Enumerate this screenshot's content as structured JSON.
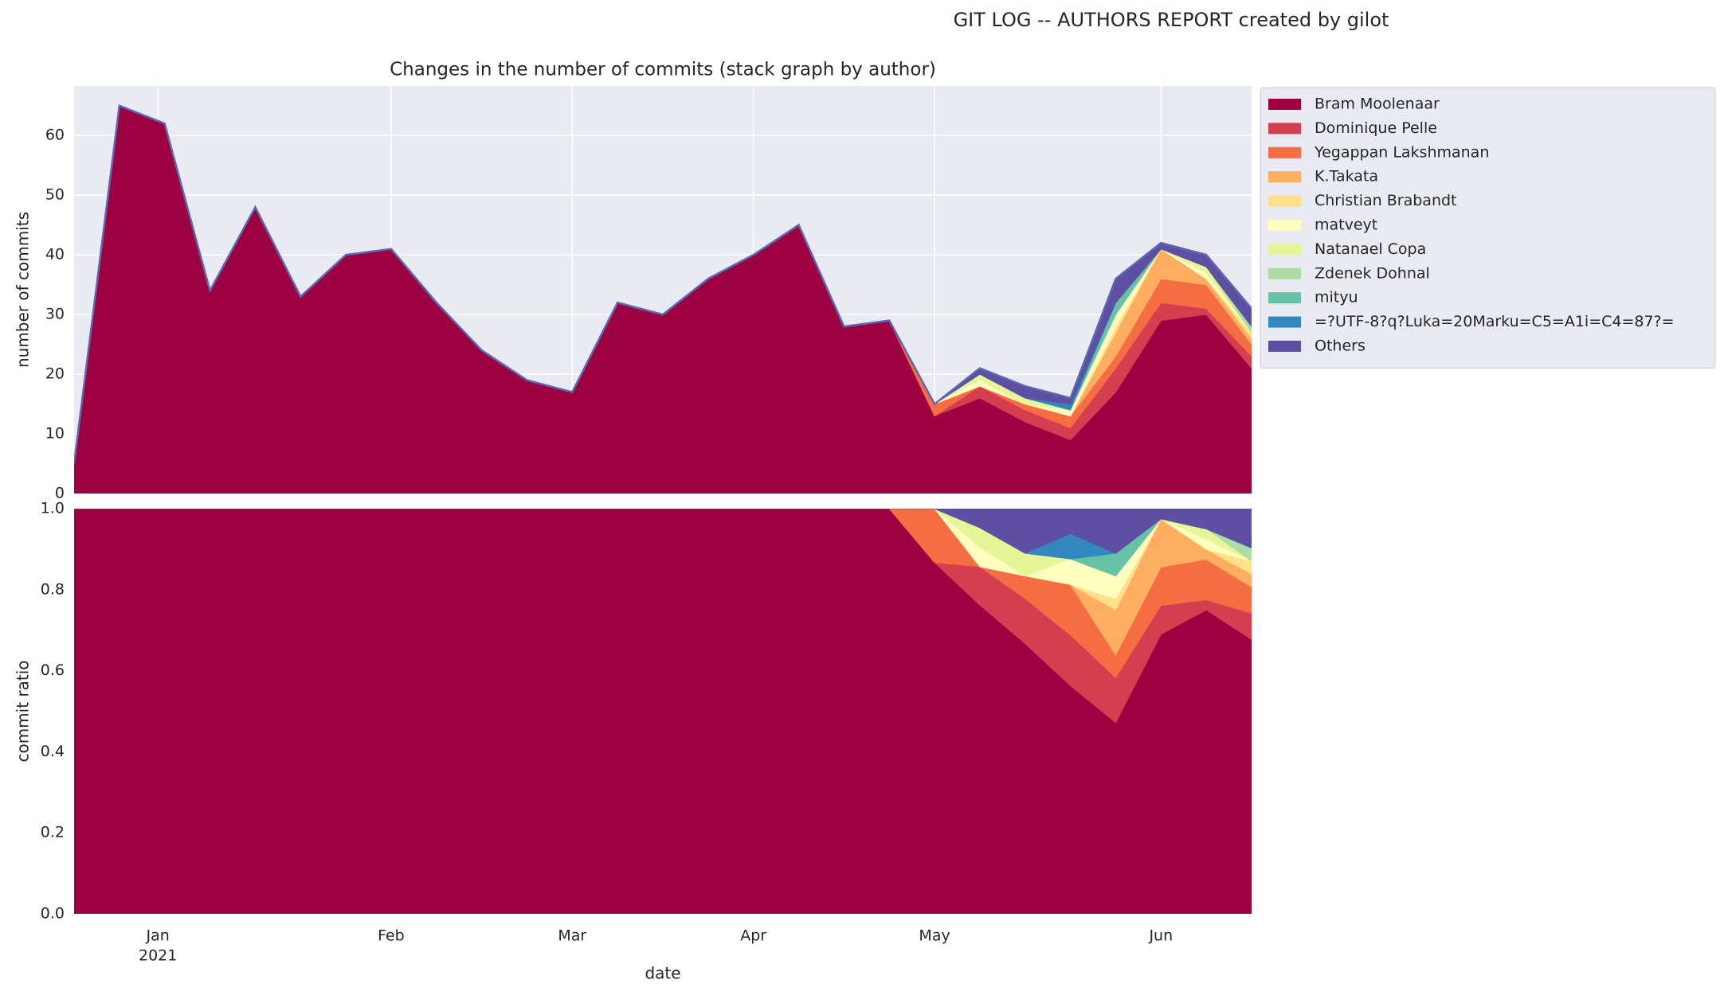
{
  "title": "GIT LOG -- AUTHORS REPORT created by gilot",
  "chart_data": [
    {
      "type": "area",
      "stacked": true,
      "title": "Changes in the number of commits (stack graph by author)",
      "y_label": "number of commits",
      "grid": true,
      "legend": "outside upper right",
      "x": [
        0,
        1,
        2,
        3,
        4,
        5,
        6,
        7,
        8,
        9,
        10,
        11,
        12,
        13,
        14,
        15,
        16,
        17,
        18,
        19,
        20,
        21,
        22,
        23,
        24,
        25,
        26
      ],
      "xlim": [
        0,
        26
      ],
      "xticks": [
        {
          "value": 1.85,
          "label": "Jan"
        },
        {
          "value": 7,
          "label": "Feb"
        },
        {
          "value": 11,
          "label": "Mar"
        },
        {
          "value": 15,
          "label": "Apr"
        },
        {
          "value": 19,
          "label": "May"
        },
        {
          "value": 24,
          "label": "Jun"
        }
      ],
      "ylim": [
        0,
        68.3
      ],
      "yticks": [
        0,
        10,
        20,
        30,
        40,
        50,
        60
      ],
      "series": [
        {
          "name": "Bram Moolenaar",
          "color": "#9e0142",
          "values": [
            5,
            65,
            62,
            34,
            48,
            33,
            40,
            41,
            32,
            24,
            19,
            17,
            32,
            30,
            36,
            40,
            45,
            28,
            29,
            13,
            16,
            12,
            9,
            17,
            29,
            30,
            21
          ]
        },
        {
          "name": "Dominique Pelle",
          "color": "#d53e4f",
          "values": [
            0,
            0,
            0,
            0,
            0,
            0,
            0,
            0,
            0,
            0,
            0,
            0,
            0,
            0,
            0,
            0,
            0,
            0,
            0,
            0,
            2,
            2,
            2,
            4,
            3,
            1,
            2
          ]
        },
        {
          "name": "Yegappan Lakshmanan",
          "color": "#f46d43",
          "values": [
            0,
            0,
            0,
            0,
            0,
            0,
            0,
            0,
            0,
            0,
            0,
            0,
            0,
            0,
            0,
            0,
            0,
            0,
            0,
            2,
            0,
            1,
            2,
            2,
            4,
            4,
            2
          ]
        },
        {
          "name": "K.Takata",
          "color": "#fdae61",
          "values": [
            0,
            0,
            0,
            0,
            0,
            0,
            0,
            0,
            0,
            0,
            0,
            0,
            0,
            0,
            0,
            0,
            0,
            0,
            0,
            0,
            0,
            0,
            0,
            4,
            5,
            1,
            1
          ]
        },
        {
          "name": "Christian Brabandt",
          "color": "#fee08b",
          "values": [
            0,
            0,
            0,
            0,
            0,
            0,
            0,
            0,
            0,
            0,
            0,
            0,
            0,
            0,
            0,
            0,
            0,
            0,
            0,
            0,
            0,
            0,
            0,
            1,
            0,
            0,
            1
          ]
        },
        {
          "name": "matveyt",
          "color": "#ffffbf",
          "values": [
            0,
            0,
            0,
            0,
            0,
            0,
            0,
            0,
            0,
            0,
            0,
            0,
            0,
            0,
            0,
            0,
            0,
            0,
            0,
            0,
            1,
            0,
            1,
            2,
            0,
            1,
            0
          ]
        },
        {
          "name": "Natanael Copa",
          "color": "#e6f598",
          "values": [
            0,
            0,
            0,
            0,
            0,
            0,
            0,
            0,
            0,
            0,
            0,
            0,
            0,
            0,
            0,
            0,
            0,
            0,
            0,
            0,
            1,
            1,
            0,
            0,
            0,
            1,
            0
          ]
        },
        {
          "name": "Zdenek Dohnal",
          "color": "#abdda4",
          "values": [
            0,
            0,
            0,
            0,
            0,
            0,
            0,
            0,
            0,
            0,
            0,
            0,
            0,
            0,
            0,
            0,
            0,
            0,
            0,
            0,
            0,
            0,
            0,
            0,
            0,
            0,
            1
          ]
        },
        {
          "name": "mityu",
          "color": "#66c2a5",
          "values": [
            0,
            0,
            0,
            0,
            0,
            0,
            0,
            0,
            0,
            0,
            0,
            0,
            0,
            0,
            0,
            0,
            0,
            0,
            0,
            0,
            0,
            0,
            0,
            2,
            0,
            0,
            0
          ]
        },
        {
          "name": "=?UTF-8?q?Luka=20Marku=C5=A1i=C4=87?=",
          "color": "#3288bd",
          "values": [
            0,
            0,
            0,
            0,
            0,
            0,
            0,
            0,
            0,
            0,
            0,
            0,
            0,
            0,
            0,
            0,
            0,
            0,
            0,
            0,
            0,
            0,
            1,
            0,
            0,
            0,
            0
          ]
        },
        {
          "name": "Others",
          "color": "#5e4fa2",
          "values": [
            0,
            0,
            0,
            0,
            0,
            0,
            0,
            0,
            0,
            0,
            0,
            0,
            0,
            0,
            0,
            0,
            0,
            0,
            0,
            0,
            1,
            2,
            1,
            4,
            1,
            2,
            3
          ]
        }
      ]
    },
    {
      "type": "area",
      "stacked": true,
      "y_label": "commit ratio",
      "x_label": "date",
      "year": "2021",
      "grid": true,
      "x": [
        0,
        1,
        2,
        3,
        4,
        5,
        6,
        7,
        8,
        9,
        10,
        11,
        12,
        13,
        14,
        15,
        16,
        17,
        18,
        19,
        20,
        21,
        22,
        23,
        24,
        25,
        26
      ],
      "xlim": [
        0,
        26
      ],
      "xticks": [
        {
          "value": 1.85,
          "label": "Jan"
        },
        {
          "value": 7,
          "label": "Feb"
        },
        {
          "value": 11,
          "label": "Mar"
        },
        {
          "value": 15,
          "label": "Apr"
        },
        {
          "value": 19,
          "label": "May"
        },
        {
          "value": 24,
          "label": "Jun"
        }
      ],
      "ylim": [
        0,
        1
      ],
      "yticks": [
        {
          "value": 0,
          "label": "0.0"
        },
        {
          "value": 0.2,
          "label": "0.2"
        },
        {
          "value": 0.4,
          "label": "0.4"
        },
        {
          "value": 0.6,
          "label": "0.6"
        },
        {
          "value": 0.8,
          "label": "0.8"
        },
        {
          "value": 1,
          "label": "1.0"
        }
      ],
      "series": [
        {
          "name": "Bram Moolenaar",
          "color": "#9e0142",
          "values": [
            1,
            1,
            1,
            1,
            1,
            1,
            1,
            1,
            1,
            1,
            1,
            1,
            1,
            1,
            1,
            1,
            1,
            1,
            1,
            0.867,
            0.762,
            0.667,
            0.563,
            0.472,
            0.69,
            0.75,
            0.677
          ]
        },
        {
          "name": "Dominique Pelle",
          "color": "#d53e4f",
          "values": [
            0,
            0,
            0,
            0,
            0,
            0,
            0,
            0,
            0,
            0,
            0,
            0,
            0,
            0,
            0,
            0,
            0,
            0,
            0,
            0,
            0.095,
            0.111,
            0.125,
            0.111,
            0.071,
            0.025,
            0.065
          ]
        },
        {
          "name": "Yegappan Lakshmanan",
          "color": "#f46d43",
          "values": [
            0,
            0,
            0,
            0,
            0,
            0,
            0,
            0,
            0,
            0,
            0,
            0,
            0,
            0,
            0,
            0,
            0,
            0,
            0,
            0.133,
            0,
            0.056,
            0.125,
            0.056,
            0.095,
            0.1,
            0.065
          ]
        },
        {
          "name": "K.Takata",
          "color": "#fdae61",
          "values": [
            0,
            0,
            0,
            0,
            0,
            0,
            0,
            0,
            0,
            0,
            0,
            0,
            0,
            0,
            0,
            0,
            0,
            0,
            0,
            0,
            0,
            0,
            0,
            0.111,
            0.119,
            0.025,
            0.032
          ]
        },
        {
          "name": "Christian Brabandt",
          "color": "#fee08b",
          "values": [
            0,
            0,
            0,
            0,
            0,
            0,
            0,
            0,
            0,
            0,
            0,
            0,
            0,
            0,
            0,
            0,
            0,
            0,
            0,
            0,
            0,
            0,
            0,
            0.028,
            0,
            0,
            0.032
          ]
        },
        {
          "name": "matveyt",
          "color": "#ffffbf",
          "values": [
            0,
            0,
            0,
            0,
            0,
            0,
            0,
            0,
            0,
            0,
            0,
            0,
            0,
            0,
            0,
            0,
            0,
            0,
            0,
            0,
            0.048,
            0,
            0.063,
            0.056,
            0,
            0.025,
            0
          ]
        },
        {
          "name": "Natanael Copa",
          "color": "#e6f598",
          "values": [
            0,
            0,
            0,
            0,
            0,
            0,
            0,
            0,
            0,
            0,
            0,
            0,
            0,
            0,
            0,
            0,
            0,
            0,
            0,
            0,
            0.048,
            0.056,
            0,
            0,
            0,
            0.025,
            0
          ]
        },
        {
          "name": "Zdenek Dohnal",
          "color": "#abdda4",
          "values": [
            0,
            0,
            0,
            0,
            0,
            0,
            0,
            0,
            0,
            0,
            0,
            0,
            0,
            0,
            0,
            0,
            0,
            0,
            0,
            0,
            0,
            0,
            0,
            0,
            0,
            0,
            0.032
          ]
        },
        {
          "name": "mityu",
          "color": "#66c2a5",
          "values": [
            0,
            0,
            0,
            0,
            0,
            0,
            0,
            0,
            0,
            0,
            0,
            0,
            0,
            0,
            0,
            0,
            0,
            0,
            0,
            0,
            0,
            0,
            0,
            0.056,
            0,
            0,
            0
          ]
        },
        {
          "name": "=?UTF-8?q?Luka=20Marku=C5=A1i=C4=87?=",
          "color": "#3288bd",
          "values": [
            0,
            0,
            0,
            0,
            0,
            0,
            0,
            0,
            0,
            0,
            0,
            0,
            0,
            0,
            0,
            0,
            0,
            0,
            0,
            0,
            0,
            0,
            0.063,
            0,
            0,
            0,
            0
          ]
        },
        {
          "name": "Others",
          "color": "#5e4fa2",
          "values": [
            0,
            0,
            0,
            0,
            0,
            0,
            0,
            0,
            0,
            0,
            0,
            0,
            0,
            0,
            0,
            0,
            0,
            0,
            0,
            0,
            0.048,
            0.111,
            0.063,
            0.111,
            0.024,
            0.05,
            0.097
          ]
        }
      ]
    }
  ]
}
